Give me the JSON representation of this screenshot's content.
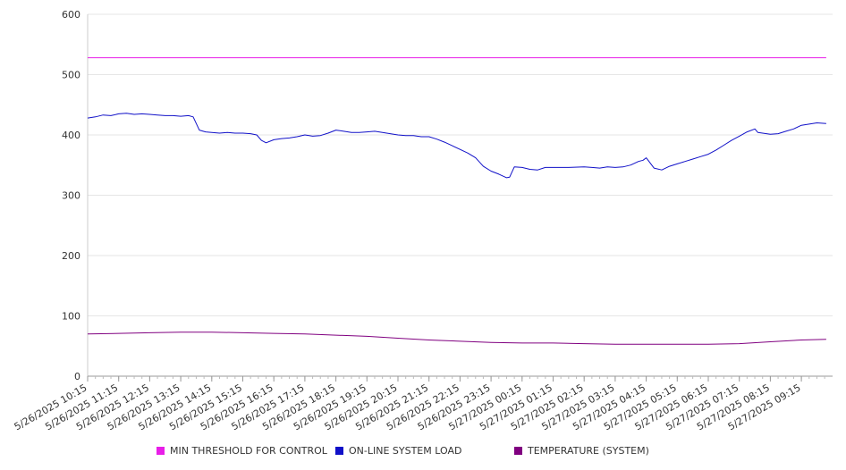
{
  "chart_data": {
    "type": "line",
    "title": "",
    "xlabel": "",
    "ylabel": "",
    "ylim": [
      0,
      600
    ],
    "yticks": [
      0,
      100,
      200,
      300,
      400,
      500,
      600
    ],
    "grid": true,
    "legend_position": "bottom",
    "x_tick_labels": [
      "5/26/2025 10:15",
      "5/26/2025 11:15",
      "5/26/2025 12:15",
      "5/26/2025 13:15",
      "5/26/2025 14:15",
      "5/26/2025 15:15",
      "5/26/2025 16:15",
      "5/26/2025 17:15",
      "5/26/2025 18:15",
      "5/26/2025 19:15",
      "5/26/2025 20:15",
      "5/26/2025 21:15",
      "5/26/2025 22:15",
      "5/26/2025 23:15",
      "5/27/2025 00:15",
      "5/27/2025 01:15",
      "5/27/2025 02:15",
      "5/27/2025 03:15",
      "5/27/2025 04:15",
      "5/27/2025 05:15",
      "5/27/2025 06:15",
      "5/27/2025 07:15",
      "5/27/2025 08:15",
      "5/27/2025 09:15"
    ],
    "x_start_index": 0,
    "x_end_index": 23.8,
    "series": [
      {
        "name": "MIN THRESHOLD FOR CONTROL",
        "color": "#e81ee8",
        "points": [
          [
            0,
            528
          ],
          [
            23.8,
            528
          ]
        ]
      },
      {
        "name": "ON-LINE SYSTEM LOAD",
        "color": "#1010c8",
        "points": [
          [
            0,
            428
          ],
          [
            0.25,
            430
          ],
          [
            0.5,
            433
          ],
          [
            0.75,
            432
          ],
          [
            1,
            435
          ],
          [
            1.25,
            436
          ],
          [
            1.5,
            434
          ],
          [
            1.75,
            435
          ],
          [
            2,
            434
          ],
          [
            2.25,
            433
          ],
          [
            2.5,
            432
          ],
          [
            2.75,
            432
          ],
          [
            3,
            431
          ],
          [
            3.25,
            432
          ],
          [
            3.4,
            430
          ],
          [
            3.6,
            408
          ],
          [
            3.8,
            405
          ],
          [
            4,
            404
          ],
          [
            4.25,
            403
          ],
          [
            4.5,
            404
          ],
          [
            4.75,
            403
          ],
          [
            5,
            403
          ],
          [
            5.25,
            402
          ],
          [
            5.45,
            400
          ],
          [
            5.6,
            391
          ],
          [
            5.75,
            387
          ],
          [
            6,
            392
          ],
          [
            6.25,
            394
          ],
          [
            6.5,
            395
          ],
          [
            6.75,
            397
          ],
          [
            7,
            400
          ],
          [
            7.25,
            398
          ],
          [
            7.5,
            399
          ],
          [
            7.75,
            403
          ],
          [
            8,
            408
          ],
          [
            8.25,
            406
          ],
          [
            8.5,
            404
          ],
          [
            8.75,
            404
          ],
          [
            9,
            405
          ],
          [
            9.25,
            406
          ],
          [
            9.5,
            404
          ],
          [
            9.75,
            402
          ],
          [
            10,
            400
          ],
          [
            10.25,
            399
          ],
          [
            10.5,
            399
          ],
          [
            10.75,
            397
          ],
          [
            11,
            397
          ],
          [
            11.25,
            393
          ],
          [
            11.5,
            388
          ],
          [
            11.75,
            382
          ],
          [
            12,
            376
          ],
          [
            12.25,
            370
          ],
          [
            12.5,
            362
          ],
          [
            12.75,
            348
          ],
          [
            13,
            340
          ],
          [
            13.25,
            335
          ],
          [
            13.5,
            329
          ],
          [
            13.6,
            330
          ],
          [
            13.75,
            347
          ],
          [
            14,
            346
          ],
          [
            14.25,
            343
          ],
          [
            14.5,
            342
          ],
          [
            14.75,
            346
          ],
          [
            15,
            346
          ],
          [
            15.5,
            346
          ],
          [
            16,
            347
          ],
          [
            16.25,
            346
          ],
          [
            16.5,
            345
          ],
          [
            16.75,
            347
          ],
          [
            17,
            346
          ],
          [
            17.25,
            347
          ],
          [
            17.5,
            350
          ],
          [
            17.75,
            356
          ],
          [
            17.9,
            358
          ],
          [
            18,
            362
          ],
          [
            18.25,
            345
          ],
          [
            18.5,
            342
          ],
          [
            18.75,
            348
          ],
          [
            19,
            352
          ],
          [
            19.25,
            356
          ],
          [
            19.5,
            360
          ],
          [
            19.75,
            364
          ],
          [
            20,
            368
          ],
          [
            20.25,
            375
          ],
          [
            20.5,
            383
          ],
          [
            20.75,
            391
          ],
          [
            21,
            398
          ],
          [
            21.25,
            405
          ],
          [
            21.5,
            410
          ],
          [
            21.6,
            404
          ],
          [
            21.75,
            403
          ],
          [
            22,
            401
          ],
          [
            22.25,
            402
          ],
          [
            22.5,
            406
          ],
          [
            22.75,
            410
          ],
          [
            23,
            416
          ],
          [
            23.25,
            418
          ],
          [
            23.5,
            420
          ],
          [
            23.8,
            419
          ]
        ]
      },
      {
        "name": "TEMPERATURE (SYSTEM)",
        "color": "#800080",
        "points": [
          [
            0,
            70
          ],
          [
            1,
            71
          ],
          [
            2,
            72
          ],
          [
            3,
            73
          ],
          [
            4,
            73
          ],
          [
            5,
            72
          ],
          [
            6,
            71
          ],
          [
            7,
            70
          ],
          [
            8,
            68
          ],
          [
            9,
            66
          ],
          [
            10,
            63
          ],
          [
            11,
            60
          ],
          [
            12,
            58
          ],
          [
            13,
            56
          ],
          [
            14,
            55
          ],
          [
            15,
            55
          ],
          [
            16,
            54
          ],
          [
            17,
            53
          ],
          [
            18,
            53
          ],
          [
            19,
            53
          ],
          [
            20,
            53
          ],
          [
            21,
            54
          ],
          [
            22,
            57
          ],
          [
            23,
            60
          ],
          [
            23.8,
            61
          ]
        ]
      }
    ]
  }
}
